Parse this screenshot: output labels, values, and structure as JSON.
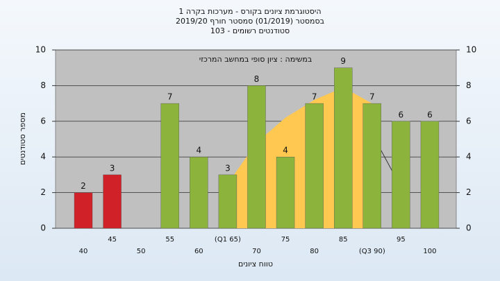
{
  "chart_data": {
    "type": "bar",
    "title": [
      "היסטוגרמת ציונים בקורס - מערכות בקרה 1",
      "בסמסטר  (01/2019)  סמסטר חורף 2019/20",
      "סטודנטים רשומים - 103"
    ],
    "annotation": "במשימה : ציון סופי במחשב המרכזי",
    "y_label": "מספר סטודנטים",
    "x_label": "טווח ציונים",
    "categories": [
      "40",
      "45",
      "50",
      "55",
      "60",
      "(Q1 65)",
      "70",
      "75",
      "80",
      "85",
      "(Q3 90)",
      "95",
      "100"
    ],
    "values": [
      2,
      3,
      null,
      7,
      4,
      3,
      8,
      4,
      7,
      9,
      7,
      6,
      6
    ],
    "colors": [
      "#d02028",
      "#d02028",
      null,
      "#8cb43c",
      "#8cb43c",
      "#8cb43c",
      "#8cb43c",
      "#8cb43c",
      "#8cb43c",
      "#8cb43c",
      "#8cb43c",
      "#8cb43c",
      "#8cb43c"
    ],
    "area": {
      "color": "#ffc850",
      "values": [
        null,
        null,
        null,
        null,
        null,
        2.5,
        4.8,
        6.2,
        7.2,
        7.9,
        7,
        null,
        null
      ]
    },
    "line": {
      "color": "#333333",
      "values": [
        null,
        null,
        null,
        null,
        null,
        null,
        null,
        null,
        null,
        null,
        5.3,
        2.3,
        null
      ]
    },
    "ylim": [
      0,
      10
    ],
    "yticks": [
      0,
      2,
      4,
      6,
      8,
      10
    ],
    "grid": true
  }
}
